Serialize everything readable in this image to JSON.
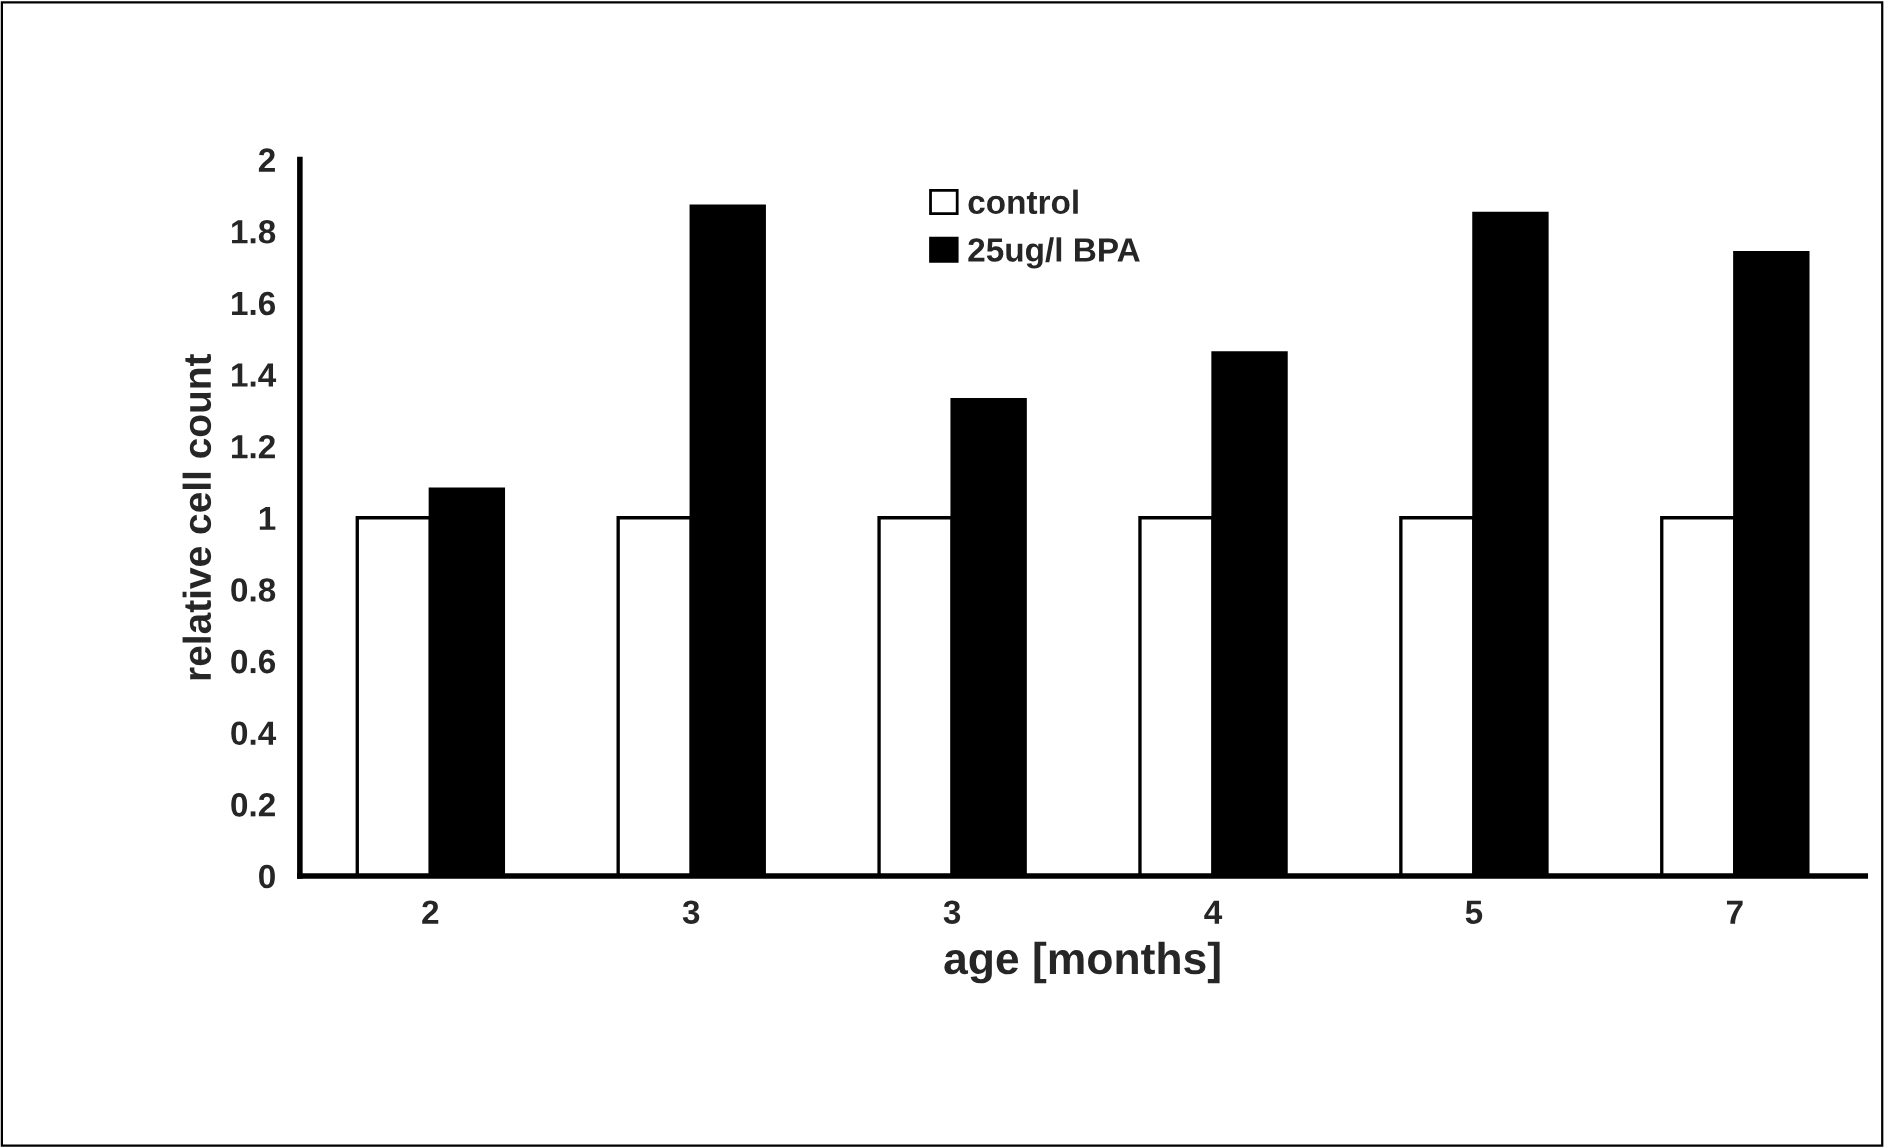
{
  "chart_data": {
    "type": "bar",
    "xlabel": "age [months]",
    "ylabel": "relative cell count",
    "categories": [
      "2",
      "3",
      "3",
      "4",
      "5",
      "7"
    ],
    "series": [
      {
        "name": "control",
        "color": "#ffffff",
        "values": [
          1,
          1,
          1,
          1,
          1,
          1
        ]
      },
      {
        "name": "25ug/l BPA",
        "color": "#000000",
        "values": [
          1.08,
          1.87,
          1.33,
          1.46,
          1.85,
          1.74
        ]
      }
    ],
    "ylim": [
      0,
      2
    ],
    "yticks": [
      0,
      0.2,
      0.4,
      0.6,
      0.8,
      1,
      1.2,
      1.4,
      1.6,
      1.8,
      2
    ],
    "grid": false,
    "legend": "top"
  }
}
